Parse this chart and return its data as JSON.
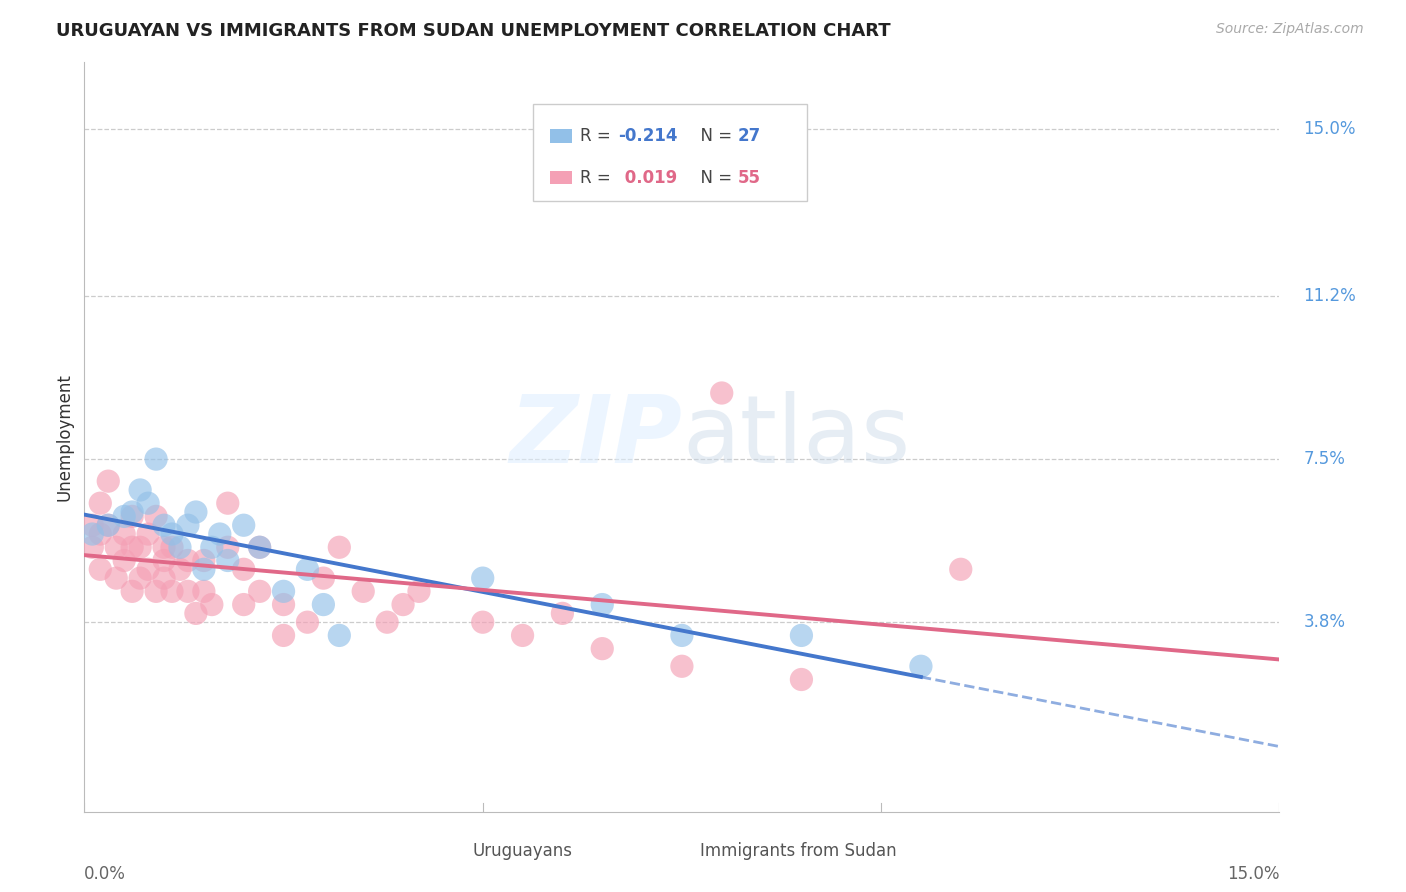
{
  "title": "URUGUAYAN VS IMMIGRANTS FROM SUDAN UNEMPLOYMENT CORRELATION CHART",
  "source": "Source: ZipAtlas.com",
  "ylabel": "Unemployment",
  "xmin": 0.0,
  "xmax": 0.15,
  "ymin": -0.005,
  "ymax": 0.165,
  "blue_color": "#92C0E8",
  "pink_color": "#F4A0B5",
  "blue_line_color": "#4477CC",
  "pink_line_color": "#E06888",
  "watermark_zip": "ZIP",
  "watermark_atlas": "atlas",
  "blue_R": -0.214,
  "blue_N": 27,
  "pink_R": 0.019,
  "pink_N": 55,
  "ytick_vals": [
    0.038,
    0.075,
    0.112,
    0.15
  ],
  "ytick_labels": [
    "3.8%",
    "7.5%",
    "11.2%",
    "15.0%"
  ],
  "blue_points_x": [
    0.001,
    0.003,
    0.005,
    0.006,
    0.007,
    0.008,
    0.009,
    0.01,
    0.011,
    0.012,
    0.013,
    0.014,
    0.015,
    0.016,
    0.017,
    0.018,
    0.02,
    0.022,
    0.025,
    0.028,
    0.03,
    0.032,
    0.05,
    0.065,
    0.075,
    0.09,
    0.105
  ],
  "blue_points_y": [
    0.058,
    0.06,
    0.062,
    0.063,
    0.068,
    0.065,
    0.075,
    0.06,
    0.058,
    0.055,
    0.06,
    0.063,
    0.05,
    0.055,
    0.058,
    0.052,
    0.06,
    0.055,
    0.045,
    0.05,
    0.042,
    0.035,
    0.048,
    0.042,
    0.035,
    0.035,
    0.028
  ],
  "pink_points_x": [
    0.001,
    0.001,
    0.002,
    0.002,
    0.002,
    0.003,
    0.003,
    0.004,
    0.004,
    0.005,
    0.005,
    0.006,
    0.006,
    0.006,
    0.007,
    0.007,
    0.008,
    0.008,
    0.009,
    0.009,
    0.01,
    0.01,
    0.01,
    0.011,
    0.011,
    0.012,
    0.013,
    0.013,
    0.014,
    0.015,
    0.015,
    0.016,
    0.018,
    0.018,
    0.02,
    0.02,
    0.022,
    0.022,
    0.025,
    0.025,
    0.028,
    0.03,
    0.032,
    0.035,
    0.038,
    0.04,
    0.042,
    0.05,
    0.055,
    0.06,
    0.065,
    0.075,
    0.08,
    0.09,
    0.11
  ],
  "pink_points_y": [
    0.06,
    0.055,
    0.065,
    0.058,
    0.05,
    0.07,
    0.06,
    0.055,
    0.048,
    0.058,
    0.052,
    0.055,
    0.062,
    0.045,
    0.055,
    0.048,
    0.058,
    0.05,
    0.062,
    0.045,
    0.055,
    0.048,
    0.052,
    0.045,
    0.055,
    0.05,
    0.045,
    0.052,
    0.04,
    0.052,
    0.045,
    0.042,
    0.065,
    0.055,
    0.05,
    0.042,
    0.055,
    0.045,
    0.042,
    0.035,
    0.038,
    0.048,
    0.055,
    0.045,
    0.038,
    0.042,
    0.045,
    0.038,
    0.035,
    0.04,
    0.032,
    0.028,
    0.09,
    0.025,
    0.05
  ],
  "blue_line_x0": 0.0,
  "blue_line_y0": 0.062,
  "blue_line_x1": 0.105,
  "blue_line_y1": 0.038,
  "pink_line_x0": 0.0,
  "pink_line_y0": 0.05,
  "pink_line_x1": 0.15,
  "pink_line_y1": 0.054
}
